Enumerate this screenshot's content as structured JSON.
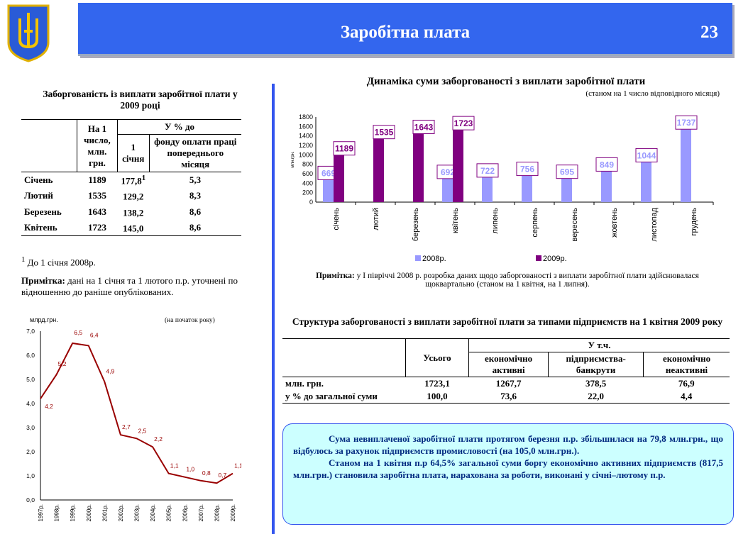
{
  "header": {
    "title": "Заробітна плата",
    "page_number": "23"
  },
  "left_table": {
    "title": "Заборгованість із виплати заробітної плати у 2009 році",
    "col_first": "На 1 число, млн. грн.",
    "col_group": "У % до",
    "col_jan": "1 січня",
    "col_fund": "фонду оплати праці попереднього місяця",
    "rows": [
      {
        "month": "Січень",
        "value": "1189",
        "jan": "177,8",
        "sup": "1",
        "fund": "5,3"
      },
      {
        "month": "Лютий",
        "value": "1535",
        "jan": "129,2",
        "sup": "",
        "fund": "8,3"
      },
      {
        "month": "Березень",
        "value": "1643",
        "jan": "138,2",
        "sup": "",
        "fund": "8,6"
      },
      {
        "month": "Квітень",
        "value": "1723",
        "jan": "145,0",
        "sup": "",
        "fund": "8,6"
      }
    ],
    "footnote_mark": "1",
    "footnote": " До 1 січня 2008р.",
    "note_label": "Примітка:",
    "note": " дані на 1 січня та 1 лютого п.р. уточнені по відношенню до раніше опублікованих."
  },
  "line_chart_meta": {
    "unit": "млрд.грн.",
    "subtitle": "(на початок року)"
  },
  "bar_chart_meta": {
    "title": "Динаміка суми заборгованості з виплати заробітної плати",
    "subtitle": "(станом на 1 число відповідного місяця)",
    "note_label": "Примітка:",
    "note": " у І півріччі 2008 р. розробка даних щодо заборгованості з виплати  заробітної плати здійснювалася щоквартально (станом на  1 квітня, на 1 липня)."
  },
  "chart_data": [
    {
      "type": "bar",
      "title": "Динаміка суми заборгованості з виплати заробітної плати",
      "subtitle": "(станом на 1 число відповідного місяця)",
      "ylabel": "млн.грн.",
      "ylim": [
        0,
        1800
      ],
      "yticks": [
        0,
        200,
        400,
        600,
        800,
        1000,
        1200,
        1400,
        1600,
        1800
      ],
      "categories": [
        "січень",
        "лютий",
        "березень",
        "квітень",
        "липень",
        "серпень",
        "вересень",
        "жовтень",
        "листопад",
        "грудень"
      ],
      "series": [
        {
          "name": "2008р.",
          "color": "#9999ff",
          "values": [
            669,
            null,
            null,
            692,
            722,
            756,
            695,
            849,
            1044,
            1737
          ]
        },
        {
          "name": "2009р.",
          "color": "#800080",
          "values": [
            1189,
            1535,
            1643,
            1723,
            null,
            null,
            null,
            null,
            null,
            null
          ]
        }
      ],
      "legend": "bottom"
    },
    {
      "type": "line",
      "ylabel": "млрд.грн.",
      "subtitle": "(на початок року)",
      "ylim": [
        0,
        7
      ],
      "yticks": [
        "0,0",
        "1,0",
        "2,0",
        "3,0",
        "4,0",
        "5,0",
        "6,0",
        "7,0"
      ],
      "categories": [
        "1997р.",
        "1998р.",
        "1999р.",
        "2000р.",
        "2001р.",
        "2002р.",
        "2003р.",
        "2004р.",
        "2005р.",
        "2006р.",
        "2007р.",
        "2008р.",
        "2009р."
      ],
      "values": [
        4.2,
        5.2,
        6.5,
        6.4,
        4.9,
        2.7,
        2.55,
        2.2,
        1.1,
        0.95,
        0.8,
        0.7,
        1.1
      ],
      "labels": [
        "4,2",
        "5,2",
        "6,5",
        "6,4",
        "4,9",
        "2,7",
        "2,5",
        "2,2",
        "1,1",
        "1,0",
        "0,8",
        "0,7",
        "1,1"
      ],
      "color": "#990000"
    }
  ],
  "right_table": {
    "title": "Структура заборгованості з виплати заробітної плати за типами підприємств на 1 квітня 2009 року",
    "h_total": "Усього",
    "h_group": "У т.ч.",
    "h_active": "економічно активні",
    "h_bankrupt": "підприємства-банкрути",
    "h_inactive": "економічно неактивні",
    "rows": [
      {
        "label": "млн. грн.",
        "total": "1723,1",
        "active": "1267,7",
        "bankrupt": "378,5",
        "inactive": "76,9"
      },
      {
        "label": "у % до загальної суми",
        "total": "100,0",
        "active": "73,6",
        "bankrupt": "22,0",
        "inactive": "4,4"
      }
    ]
  },
  "summary": {
    "p1": "Сума невиплаченої заробітної плати протягом березня п.р. збільшилася на 79,8 млн.грн., що відбулось за рахунок підприємств промисловості (на 105,0 млн.грн.).",
    "p2": "Станом  на 1 квітня п.р 64,5% загальної суми боргу економічно активних підприємств (817,5 млн.грн.) становила заробітна плата, нарахована за роботи, виконані у січні–лютому п.р."
  }
}
